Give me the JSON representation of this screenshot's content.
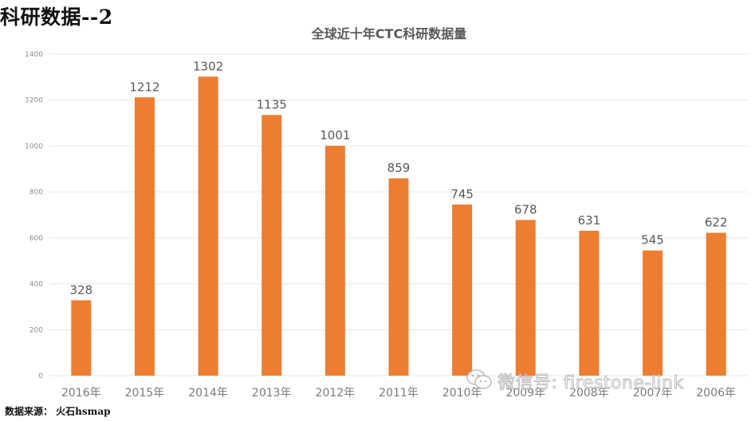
{
  "page": {
    "heading": "科研数据--2",
    "source_note": "数据来源：  火石hsmap",
    "watermark": "微信号: firestone-link",
    "watermark_icon": "wechat-icon"
  },
  "colors": {
    "bar": "#ED7D31",
    "grid": "#E6E6E6",
    "axis_text": "#8C8C8C"
  },
  "chart_data": {
    "type": "bar",
    "title": "全球近十年CTC科研数据量",
    "xlabel": "",
    "ylabel": "",
    "categories": [
      "2016年",
      "2015年",
      "2014年",
      "2013年",
      "2012年",
      "2011年",
      "2010年",
      "2009年",
      "2008年",
      "2007年",
      "2006年"
    ],
    "values": [
      328,
      1212,
      1302,
      1135,
      1001,
      859,
      745,
      678,
      631,
      545,
      622
    ],
    "ylim": [
      0,
      1400
    ],
    "yticks": [
      0,
      200,
      400,
      600,
      800,
      1000,
      1200,
      1400
    ],
    "grid": true,
    "legend": "none",
    "data_labels": true
  }
}
